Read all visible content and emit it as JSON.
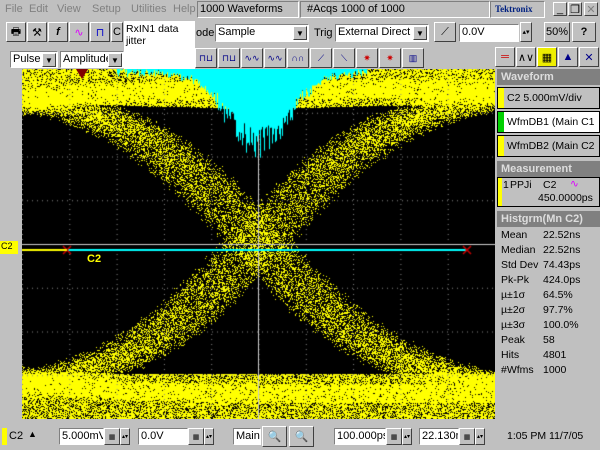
{
  "menu": [
    "File",
    "Edit",
    "View",
    "Setup",
    "Utilities",
    "Help"
  ],
  "status": {
    "waveforms": "1000 Waveforms",
    "acqs": "#Acqs  1000 of 1000",
    "brand": "Tektronix"
  },
  "window_buttons": [
    "_",
    "❐",
    "✕"
  ],
  "toolbar": {
    "tooltip": "RxIN1 data jitter",
    "mode_label": "ode",
    "mode_value": "Sample",
    "trig_label": "Trig",
    "trig_value": "External Direct",
    "trig_level": "0.0V",
    "fifty": "50%",
    "help": "?"
  },
  "toolbar2": {
    "pulse": "Pulse",
    "amplitude": "Amplitude"
  },
  "plot": {
    "channel_marker": "C2",
    "trace_label": "C2",
    "colors": {
      "waveform": "#ffff00",
      "histogram": "#00ffff",
      "background": "#000000"
    }
  },
  "side": {
    "waveform_title": "Waveform",
    "waveforms": [
      {
        "label": "C2 5.000mV/div",
        "color": "#ffff00"
      },
      {
        "label": "WfmDB1 (Main C1",
        "color": "#00d000"
      },
      {
        "label": "WfmDB2 (Main C2",
        "color": "#ffff00"
      }
    ],
    "measurement_title": "Measurement",
    "meas": {
      "num": "1",
      "name": "PPJi",
      "src": "C2",
      "value": "450.0000ps"
    },
    "hist_title": "Histgrm(Mn C2)",
    "stats": [
      [
        "Mean",
        "22.52ns"
      ],
      [
        "Median",
        "22.52ns"
      ],
      [
        "Std Dev",
        "74.43ps"
      ],
      [
        "Pk-Pk",
        "424.0ps"
      ],
      [
        "µ±1σ",
        "64.5%"
      ],
      [
        "µ±2σ",
        "97.7%"
      ],
      [
        "µ±3σ",
        "100.0%"
      ],
      [
        "Peak",
        "58"
      ],
      [
        "Hits",
        "4801"
      ],
      [
        "#Wfms",
        "1000"
      ]
    ]
  },
  "bottom": {
    "channel": "C2",
    "vscale": "5.000mV/",
    "offset": "0.0V",
    "main": "Main",
    "hscale": "100.000ps",
    "position": "22.130n",
    "time": "1:05 PM 11/7/05"
  }
}
